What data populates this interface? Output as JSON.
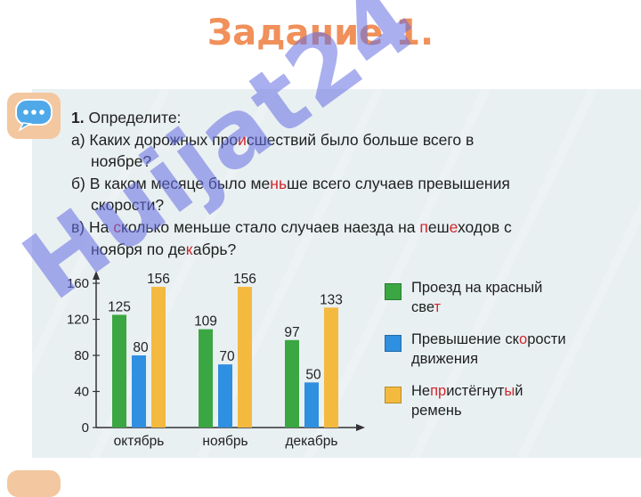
{
  "slide": {
    "title": "Задание 1."
  },
  "task": {
    "heading_num": "1.",
    "heading": "Определите:",
    "a": [
      [
        {
          "t": "а) Каких дорожных про"
        },
        {
          "t": "и",
          "red": true
        },
        {
          "t": "сшествий было больше всего в"
        }
      ],
      [
        {
          "t": "ноябре?"
        }
      ]
    ],
    "b": [
      [
        {
          "t": "б) В каком месяце было ме"
        },
        {
          "t": "нь",
          "red": true
        },
        {
          "t": "ше всего случаев превышения"
        }
      ],
      [
        {
          "t": "скорости?"
        }
      ]
    ],
    "c": [
      [
        {
          "t": "в) На "
        },
        {
          "t": "с",
          "red": true
        },
        {
          "t": "колько меньше стало случаев наезда на "
        },
        {
          "t": "п",
          "red": true
        },
        {
          "t": "еш"
        },
        {
          "t": "е",
          "red": true
        },
        {
          "t": "ходов с"
        }
      ],
      [
        {
          "t": "ноября по де"
        },
        {
          "t": "к",
          "red": true
        },
        {
          "t": "абрь?"
        }
      ]
    ]
  },
  "chart_data": {
    "type": "bar",
    "categories": [
      "октябрь",
      "ноябрь",
      "декабрь"
    ],
    "series": [
      {
        "name": "Проезд на красный свет",
        "color": "#3aa742",
        "values": [
          125,
          109,
          97
        ]
      },
      {
        "name": "Превышение скорости движения",
        "color": "#2f8fe0",
        "values": [
          80,
          70,
          50
        ]
      },
      {
        "name": "Непристёгнутый ремень",
        "color": "#f4b93f",
        "values": [
          156,
          156,
          133
        ]
      }
    ],
    "yticks": [
      0,
      40,
      80,
      120,
      160
    ],
    "ylim": [
      0,
      160
    ],
    "grid": false
  },
  "legend": [
    {
      "color": "#3aa742",
      "lines": [
        [
          {
            "t": "Проезд на красный"
          }
        ],
        [
          {
            "t": "све"
          },
          {
            "t": "т",
            "red": true
          }
        ]
      ]
    },
    {
      "color": "#2f8fe0",
      "lines": [
        [
          {
            "t": "Превышение ск"
          },
          {
            "t": "о",
            "red": true
          },
          {
            "t": "рости"
          }
        ],
        [
          {
            "t": "движения"
          }
        ]
      ]
    },
    {
      "color": "#f4b93f",
      "lines": [
        [
          {
            "t": "Не"
          },
          {
            "t": "пр",
            "red": true
          },
          {
            "t": "истёгнут"
          },
          {
            "t": "ы",
            "red": true
          },
          {
            "t": "й"
          }
        ],
        [
          {
            "t": "ремень"
          }
        ]
      ]
    }
  ],
  "watermark": {
    "text": "Huijat24"
  }
}
